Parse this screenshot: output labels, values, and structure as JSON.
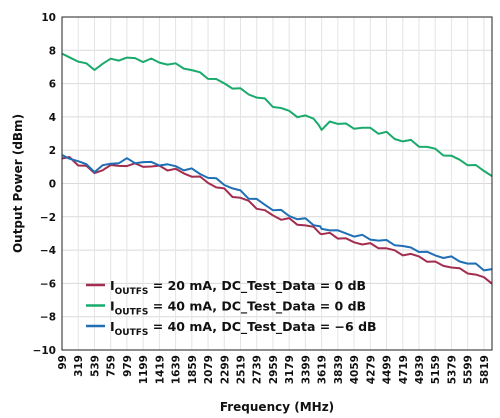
{
  "chart_data": {
    "type": "line",
    "title": "",
    "xlabel": "Frequency (MHz)",
    "ylabel": "Output Power (dBm)",
    "xlim": [
      99,
      5929
    ],
    "ylim": [
      -10,
      10
    ],
    "xticks": [
      99,
      319,
      539,
      759,
      979,
      1199,
      1419,
      1639,
      1859,
      2079,
      2299,
      2519,
      2739,
      2959,
      3179,
      3399,
      3619,
      3839,
      4059,
      4279,
      4499,
      4719,
      4939,
      5159,
      5379,
      5599,
      5819
    ],
    "yticks": [
      10,
      8,
      6,
      4,
      2,
      0,
      -2,
      -4,
      -6,
      -8,
      -10
    ],
    "grid": true,
    "legend_position": "bottom-left",
    "series": [
      {
        "name": "I_OUTFS = 20 mA, DC_Test_Data = 0 dB",
        "label_prefix": "I",
        "label_sub": "OUTFS",
        "label_rest": " = 20 mA, DC_Test_Data = 0 dB",
        "color": "#a32d4f",
        "x": [
          99,
          200,
          319,
          430,
          539,
          650,
          759,
          870,
          979,
          1090,
          1199,
          1310,
          1419,
          1530,
          1639,
          1750,
          1859,
          1970,
          2079,
          2190,
          2299,
          2410,
          2519,
          2630,
          2739,
          2850,
          2959,
          3070,
          3179,
          3290,
          3399,
          3510,
          3600,
          3619,
          3730,
          3839,
          3950,
          4059,
          4170,
          4279,
          4390,
          4499,
          4610,
          4719,
          4830,
          4939,
          5050,
          5159,
          5270,
          5379,
          5490,
          5599,
          5710,
          5819,
          5929
        ],
        "y": [
          1.5,
          1.5,
          1.2,
          1.0,
          0.6,
          0.9,
          1.0,
          1.1,
          1.1,
          1.1,
          1.1,
          1.0,
          1.0,
          0.9,
          0.8,
          0.6,
          0.5,
          0.3,
          0.1,
          -0.2,
          -0.4,
          -0.7,
          -0.9,
          -1.1,
          -1.4,
          -1.7,
          -1.9,
          -2.1,
          -2.2,
          -2.4,
          -2.5,
          -2.7,
          -2.9,
          -3.1,
          -3.0,
          -3.2,
          -3.4,
          -3.5,
          -3.6,
          -3.7,
          -3.8,
          -3.9,
          -4.1,
          -4.2,
          -4.3,
          -4.4,
          -4.6,
          -4.8,
          -4.9,
          -5.0,
          -5.2,
          -5.3,
          -5.5,
          -5.7,
          -5.9
        ]
      },
      {
        "name": "I_OUTFS = 40 mA, DC_Test_Data = 0 dB",
        "label_prefix": "I",
        "label_sub": "OUTFS",
        "label_rest": " = 40 mA, DC_Test_Data = 0 dB",
        "color": "#1aaa6c",
        "x": [
          99,
          200,
          319,
          430,
          539,
          650,
          759,
          870,
          979,
          1090,
          1199,
          1310,
          1419,
          1530,
          1639,
          1750,
          1859,
          1970,
          2079,
          2190,
          2299,
          2410,
          2519,
          2630,
          2739,
          2850,
          2959,
          3070,
          3179,
          3290,
          3399,
          3510,
          3580,
          3619,
          3730,
          3839,
          3950,
          4059,
          4170,
          4279,
          4390,
          4499,
          4610,
          4719,
          4830,
          4939,
          5050,
          5159,
          5270,
          5379,
          5490,
          5599,
          5710,
          5819,
          5929
        ],
        "y": [
          7.7,
          7.6,
          7.4,
          7.1,
          6.9,
          7.2,
          7.4,
          7.5,
          7.5,
          7.5,
          7.4,
          7.4,
          7.3,
          7.2,
          7.1,
          7.0,
          6.8,
          6.6,
          6.4,
          6.2,
          6.0,
          5.8,
          5.6,
          5.4,
          5.2,
          5.0,
          4.7,
          4.5,
          4.3,
          4.1,
          4.0,
          3.9,
          3.6,
          3.1,
          3.8,
          3.6,
          3.5,
          3.4,
          3.3,
          3.3,
          3.1,
          3.0,
          2.7,
          2.6,
          2.5,
          2.3,
          2.2,
          2.0,
          1.8,
          1.6,
          1.4,
          1.2,
          1.0,
          0.8,
          0.5
        ]
      },
      {
        "name": "I_OUTFS = 40 mA, DC_Test_Data = −6 dB",
        "label_prefix": "I",
        "label_sub": "OUTFS",
        "label_rest": " = 40 mA, DC_Test_Data = −6 dB",
        "color": "#1f6fb5",
        "x": [
          99,
          200,
          319,
          430,
          539,
          650,
          759,
          870,
          979,
          1090,
          1199,
          1310,
          1419,
          1530,
          1639,
          1750,
          1859,
          1970,
          2079,
          2190,
          2299,
          2410,
          2519,
          2630,
          2739,
          2850,
          2959,
          3070,
          3179,
          3290,
          3399,
          3510,
          3600,
          3619,
          3730,
          3839,
          3950,
          4059,
          4170,
          4279,
          4390,
          4499,
          4610,
          4719,
          4830,
          4939,
          5050,
          5159,
          5270,
          5379,
          5490,
          5599,
          5710,
          5819,
          5929
        ],
        "y": [
          1.6,
          1.6,
          1.3,
          1.1,
          0.8,
          1.0,
          1.2,
          1.3,
          1.4,
          1.3,
          1.3,
          1.2,
          1.2,
          1.1,
          1.0,
          0.9,
          0.8,
          0.6,
          0.4,
          0.2,
          0.0,
          -0.3,
          -0.5,
          -0.8,
          -1.0,
          -1.3,
          -1.5,
          -1.7,
          -1.9,
          -2.1,
          -2.2,
          -2.4,
          -2.6,
          -2.8,
          -2.7,
          -2.9,
          -3.0,
          -3.1,
          -3.2,
          -3.3,
          -3.4,
          -3.5,
          -3.6,
          -3.8,
          -3.9,
          -4.0,
          -4.2,
          -4.3,
          -4.4,
          -4.5,
          -4.6,
          -4.8,
          -4.9,
          -5.1,
          -5.2
        ]
      }
    ]
  }
}
